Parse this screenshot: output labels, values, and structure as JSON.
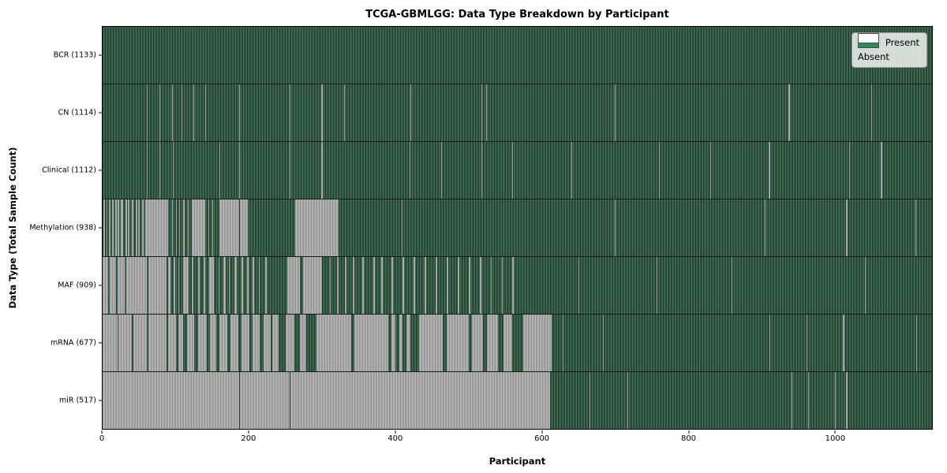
{
  "title": "TCGA-GBMLGG: Data Type Breakdown by Participant",
  "xlabel": "Participant",
  "ylabel": "Data Type (Total Sample Count)",
  "legend": {
    "present_label": "Present",
    "absent_label": "Absent"
  },
  "colors": {
    "present_bar": "#2e8b57",
    "present_stripe_dark": "#1b3526",
    "present_stripe_light": "#44715a",
    "absent_stripe_dark": "#8b8b8b",
    "absent_stripe_light": "#bababa",
    "axis": "#000000",
    "legend_background": "#fafafa"
  },
  "chart_data": {
    "type": "heatmap",
    "title": "TCGA-GBMLGG: Data Type Breakdown by Participant",
    "xlabel": "Participant",
    "ylabel": "Data Type (Total Sample Count)",
    "legend_entries": [
      "Present",
      "Absent"
    ],
    "legend_position": "upper right",
    "x_max": 1133,
    "x_ticks": [
      0,
      200,
      400,
      600,
      800,
      1000
    ],
    "rows": [
      {
        "name": "BCR",
        "label": "BCR (1133)",
        "present_count": 1133,
        "absent_runs": []
      },
      {
        "name": "CN",
        "label": "CN (1114)",
        "present_count": 1114,
        "absent_runs": [
          [
            60,
            61
          ],
          [
            78,
            79
          ],
          [
            95,
            96
          ],
          [
            108,
            109
          ],
          [
            124,
            125
          ],
          [
            140,
            141
          ],
          [
            186,
            188
          ],
          [
            256,
            257
          ],
          [
            299,
            301
          ],
          [
            330,
            331
          ],
          [
            420,
            421
          ],
          [
            517,
            518
          ],
          [
            524,
            525
          ],
          [
            700,
            701
          ],
          [
            937,
            939
          ],
          [
            1050,
            1051
          ]
        ]
      },
      {
        "name": "Clinical",
        "label": "Clinical (1112)",
        "present_count": 1112,
        "absent_runs": [
          [
            60,
            61
          ],
          [
            78,
            79
          ],
          [
            96,
            97
          ],
          [
            160,
            161
          ],
          [
            186,
            188
          ],
          [
            256,
            257
          ],
          [
            299,
            301
          ],
          [
            419,
            420
          ],
          [
            462,
            463
          ],
          [
            517,
            518
          ],
          [
            560,
            561
          ],
          [
            640,
            641
          ],
          [
            760,
            761
          ],
          [
            830,
            831
          ],
          [
            910,
            912
          ],
          [
            1020,
            1021
          ],
          [
            1063,
            1065
          ]
        ]
      },
      {
        "name": "Methylation",
        "label": "Methylation (938)",
        "present_count": 938,
        "absent_runs": [
          [
            1,
            3
          ],
          [
            5,
            7
          ],
          [
            9,
            11
          ],
          [
            13,
            15
          ],
          [
            17,
            19
          ],
          [
            21,
            23
          ],
          [
            25,
            28
          ],
          [
            31,
            33
          ],
          [
            35,
            37
          ],
          [
            40,
            42
          ],
          [
            45,
            47
          ],
          [
            49,
            51
          ],
          [
            54,
            56
          ],
          [
            58,
            90
          ],
          [
            95,
            96
          ],
          [
            100,
            101
          ],
          [
            105,
            106
          ],
          [
            110,
            112
          ],
          [
            116,
            117
          ],
          [
            122,
            140
          ],
          [
            144,
            146
          ],
          [
            150,
            151
          ],
          [
            160,
            186
          ],
          [
            188,
            198
          ],
          [
            263,
            322
          ],
          [
            409,
            410
          ],
          [
            700,
            701
          ],
          [
            904,
            906
          ],
          [
            1016,
            1018
          ],
          [
            1110,
            1111
          ]
        ]
      },
      {
        "name": "MAF",
        "label": "MAF (909)",
        "present_count": 909,
        "absent_runs": [
          [
            0,
            8
          ],
          [
            10,
            18
          ],
          [
            20,
            30
          ],
          [
            32,
            60
          ],
          [
            62,
            87
          ],
          [
            90,
            93
          ],
          [
            97,
            99
          ],
          [
            103,
            105
          ],
          [
            110,
            118
          ],
          [
            122,
            124
          ],
          [
            130,
            133
          ],
          [
            138,
            140
          ],
          [
            145,
            152
          ],
          [
            158,
            160
          ],
          [
            165,
            168
          ],
          [
            172,
            174
          ],
          [
            180,
            183
          ],
          [
            190,
            192
          ],
          [
            197,
            199
          ],
          [
            205,
            207
          ],
          [
            213,
            215
          ],
          [
            222,
            224
          ],
          [
            252,
            270
          ],
          [
            274,
            300
          ],
          [
            310,
            312
          ],
          [
            320,
            322
          ],
          [
            331,
            333
          ],
          [
            342,
            344
          ],
          [
            355,
            357
          ],
          [
            370,
            372
          ],
          [
            381,
            383
          ],
          [
            395,
            397
          ],
          [
            410,
            412
          ],
          [
            425,
            427
          ],
          [
            440,
            442
          ],
          [
            455,
            457
          ],
          [
            470,
            472
          ],
          [
            485,
            487
          ],
          [
            500,
            502
          ],
          [
            515,
            517
          ],
          [
            530,
            532
          ],
          [
            545,
            547
          ],
          [
            560,
            562
          ],
          [
            650,
            651
          ],
          [
            757,
            758
          ],
          [
            859,
            860
          ],
          [
            1041,
            1042
          ]
        ]
      },
      {
        "name": "mRNA",
        "label": "mRNA (677)",
        "present_count": 677,
        "absent_runs": [
          [
            0,
            20
          ],
          [
            22,
            40
          ],
          [
            42,
            60
          ],
          [
            62,
            87
          ],
          [
            90,
            100
          ],
          [
            104,
            110
          ],
          [
            115,
            125
          ],
          [
            130,
            142
          ],
          [
            147,
            155
          ],
          [
            160,
            170
          ],
          [
            175,
            185
          ],
          [
            190,
            200
          ],
          [
            205,
            215
          ],
          [
            220,
            230
          ],
          [
            232,
            240
          ],
          [
            250,
            262
          ],
          [
            270,
            278
          ],
          [
            292,
            340
          ],
          [
            344,
            390
          ],
          [
            395,
            400
          ],
          [
            405,
            410
          ],
          [
            415,
            420
          ],
          [
            432,
            465
          ],
          [
            470,
            500
          ],
          [
            505,
            520
          ],
          [
            525,
            540
          ],
          [
            548,
            560
          ],
          [
            575,
            613
          ],
          [
            629,
            630
          ],
          [
            684,
            685
          ],
          [
            911,
            912
          ],
          [
            962,
            963
          ],
          [
            1011,
            1013
          ],
          [
            1111,
            1112
          ]
        ]
      },
      {
        "name": "miR",
        "label": "miR (517)",
        "present_count": 517,
        "absent_runs": [
          [
            0,
            187
          ],
          [
            188,
            256
          ],
          [
            257,
            611
          ],
          [
            665,
            666
          ],
          [
            717,
            718
          ],
          [
            941,
            942
          ],
          [
            964,
            965
          ],
          [
            1000,
            1001
          ],
          [
            1015,
            1018
          ]
        ]
      }
    ]
  }
}
